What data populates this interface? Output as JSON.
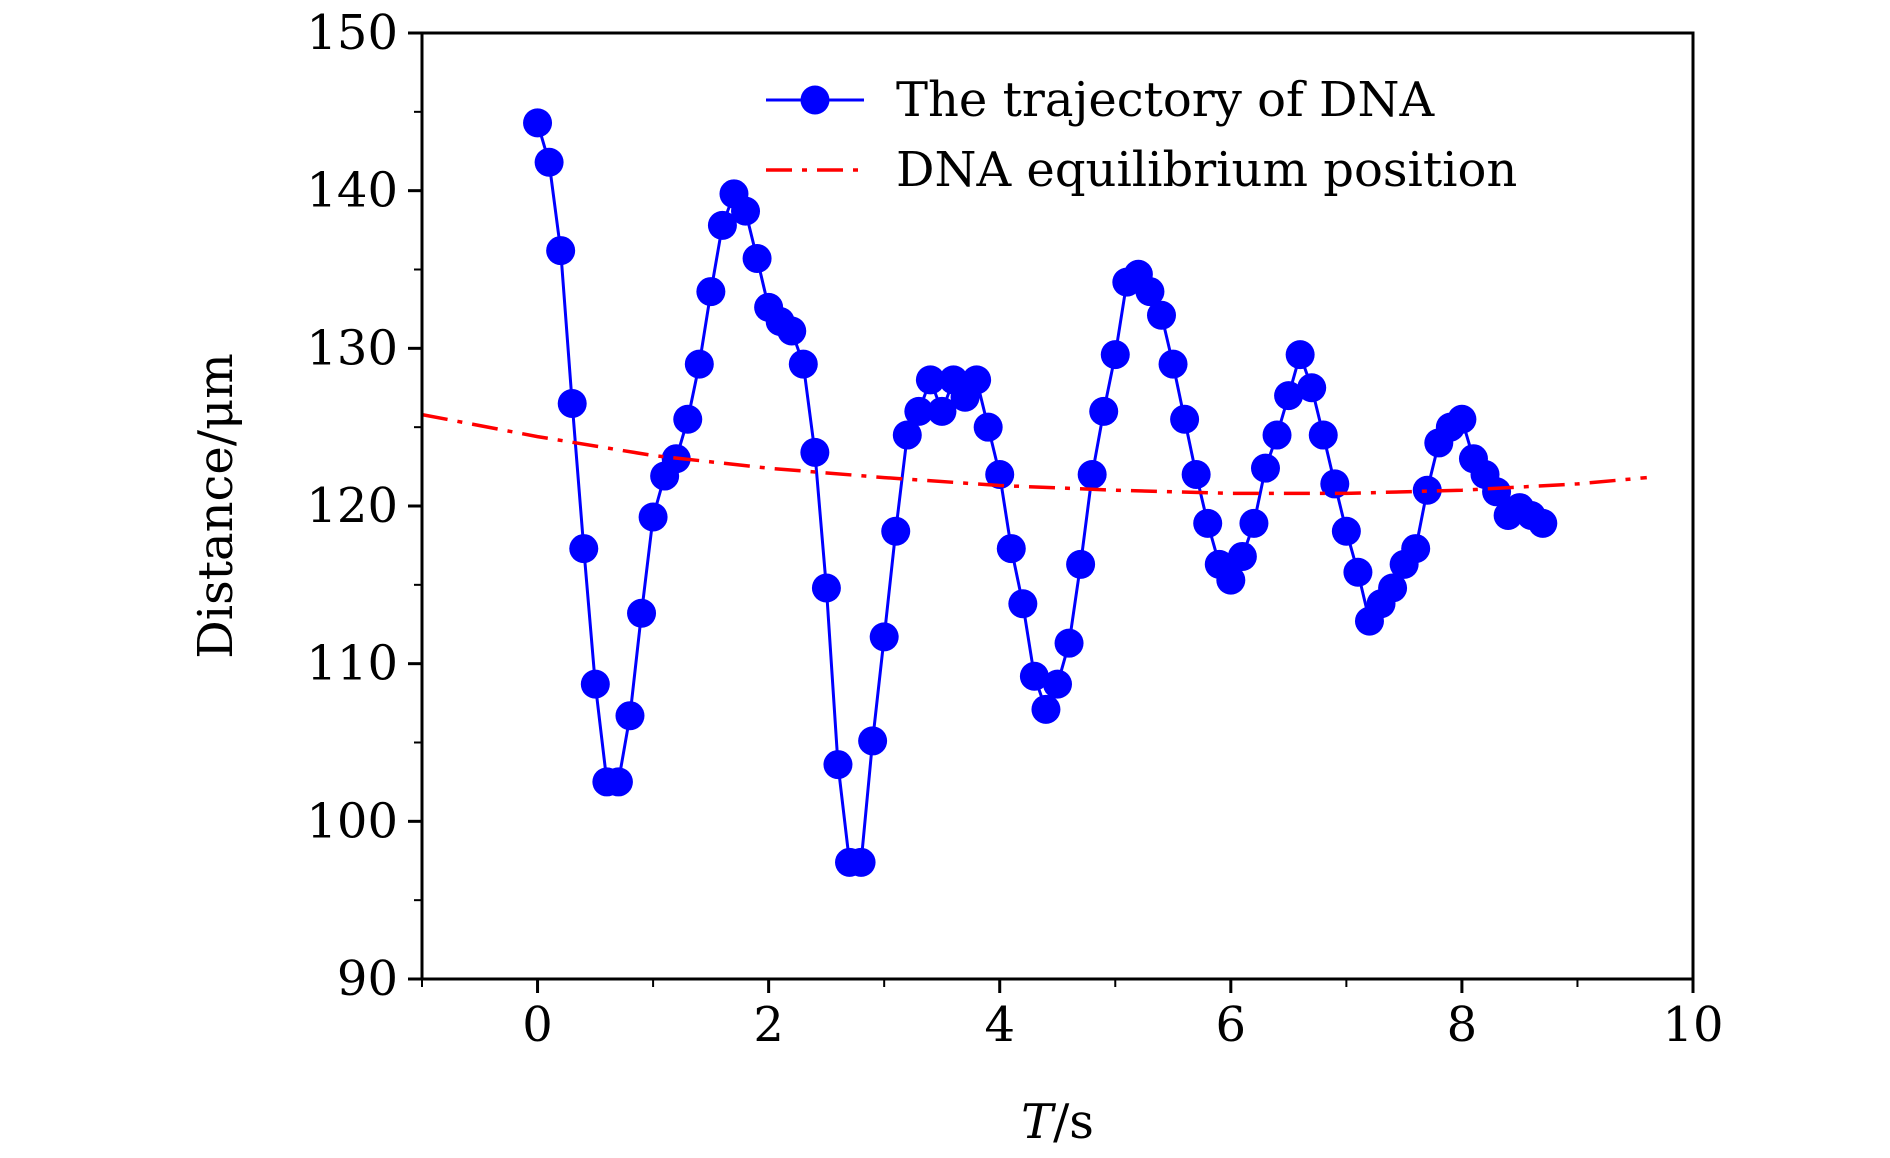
{
  "chart_data": {
    "type": "line",
    "xlabel_italic": "T",
    "xlabel_rest": "/s",
    "ylabel": "Distance/μm",
    "xlim": [
      -1,
      10
    ],
    "ylim": [
      90,
      150
    ],
    "xticks": [
      0,
      2,
      4,
      6,
      8,
      10
    ],
    "yticks": [
      90,
      100,
      110,
      120,
      130,
      140,
      150
    ],
    "grid": false,
    "legend_position": "top-right",
    "series": [
      {
        "name": "The trajectory of DNA",
        "style": "line-with-circle-markers",
        "color": "#0000ff",
        "x": [
          0,
          0.1,
          0.2,
          0.3,
          0.4,
          0.5,
          0.6,
          0.7,
          0.8,
          0.9,
          1.0,
          1.1,
          1.2,
          1.3,
          1.4,
          1.5,
          1.6,
          1.7,
          1.8,
          1.9,
          2.0,
          2.1,
          2.2,
          2.3,
          2.4,
          2.5,
          2.6,
          2.7,
          2.8,
          2.9,
          3.0,
          3.1,
          3.2,
          3.3,
          3.4,
          3.5,
          3.6,
          3.7,
          3.8,
          3.9,
          4.0,
          4.1,
          4.2,
          4.3,
          4.4,
          4.5,
          4.6,
          4.7,
          4.8,
          4.9,
          5.0,
          5.1,
          5.2,
          5.3,
          5.4,
          5.5,
          5.6,
          5.7,
          5.8,
          5.9,
          6.0,
          6.1,
          6.2,
          6.3,
          6.4,
          6.5,
          6.6,
          6.7,
          6.8,
          6.9,
          7.0,
          7.1,
          7.2,
          7.3,
          7.4,
          7.5,
          7.6,
          7.7,
          7.8,
          7.9,
          8.0,
          8.1,
          8.2,
          8.3,
          8.4,
          8.5,
          8.6,
          8.7
        ],
        "y": [
          144.3,
          141.8,
          136.2,
          126.5,
          117.3,
          108.7,
          102.5,
          102.5,
          106.7,
          113.2,
          119.3,
          121.9,
          123.0,
          125.5,
          129.0,
          133.6,
          137.8,
          139.8,
          138.7,
          135.7,
          132.6,
          131.7,
          131.1,
          129.0,
          123.4,
          114.8,
          103.6,
          97.4,
          97.4,
          105.1,
          111.7,
          118.4,
          124.5,
          126.0,
          128.0,
          126.0,
          128.0,
          126.9,
          128.0,
          125.0,
          122.0,
          117.3,
          113.8,
          109.2,
          107.1,
          108.7,
          111.3,
          116.3,
          122.0,
          126.0,
          129.6,
          134.2,
          134.7,
          133.6,
          132.1,
          129.0,
          125.5,
          122.0,
          118.9,
          116.3,
          115.3,
          116.8,
          118.9,
          122.4,
          124.5,
          127.0,
          129.6,
          127.5,
          124.5,
          121.4,
          118.4,
          115.8,
          112.7,
          113.8,
          114.8,
          116.3,
          117.3,
          121.0,
          124.0,
          125.0,
          125.5,
          123.0,
          122.0,
          120.9,
          119.4,
          119.9,
          119.4,
          118.9
        ]
      },
      {
        "name": "DNA equilibrium position",
        "style": "dash-dot-line",
        "color": "#ff0000",
        "x": [
          -1,
          0,
          1,
          2,
          3,
          4,
          5,
          6,
          7,
          8,
          9,
          9.6
        ],
        "y": [
          125.8,
          124.4,
          123.2,
          122.4,
          121.8,
          121.3,
          121.0,
          120.8,
          120.8,
          121.0,
          121.4,
          121.8
        ]
      }
    ]
  }
}
